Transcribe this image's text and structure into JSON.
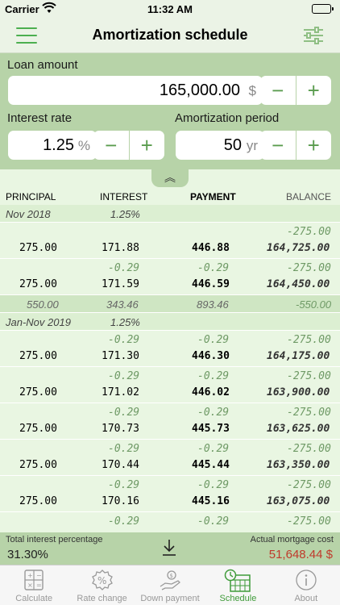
{
  "status": {
    "carrier": "Carrier",
    "time": "11:32 AM"
  },
  "nav": {
    "title": "Amortization schedule"
  },
  "form": {
    "loan_label": "Loan amount",
    "loan_value": "165,000.00",
    "loan_unit": "$",
    "rate_label": "Interest rate",
    "rate_value": "1.25",
    "rate_unit": "%",
    "period_label": "Amortization period",
    "period_value": "50",
    "period_unit": "yr",
    "minus": "−",
    "plus": "+"
  },
  "collapse": "︽",
  "table": {
    "headers": {
      "principal": "PRINCIPAL",
      "interest": "INTEREST",
      "payment": "PAYMENT",
      "balance": "BALANCE"
    },
    "period1": {
      "label": "Nov 2018",
      "rate": "1.25%"
    },
    "rows1": [
      {
        "ci": "",
        "cp": "",
        "cb": "-275.00",
        "p": "275.00",
        "i": "171.88",
        "pay": "446.88",
        "b": "164,725.00"
      },
      {
        "ci": "-0.29",
        "cp": "-0.29",
        "cb": "-275.00",
        "p": "275.00",
        "i": "171.59",
        "pay": "446.59",
        "b": "164,450.00"
      }
    ],
    "subtotal": {
      "p": "550.00",
      "i": "343.46",
      "pay": "893.46",
      "b": "-550.00"
    },
    "period2": {
      "label": "Jan-Nov 2019",
      "rate": "1.25%"
    },
    "rows2": [
      {
        "ci": "-0.29",
        "cp": "-0.29",
        "cb": "-275.00",
        "p": "275.00",
        "i": "171.30",
        "pay": "446.30",
        "b": "164,175.00"
      },
      {
        "ci": "-0.29",
        "cp": "-0.29",
        "cb": "-275.00",
        "p": "275.00",
        "i": "171.02",
        "pay": "446.02",
        "b": "163,900.00"
      },
      {
        "ci": "-0.29",
        "cp": "-0.29",
        "cb": "-275.00",
        "p": "275.00",
        "i": "170.73",
        "pay": "445.73",
        "b": "163,625.00"
      },
      {
        "ci": "-0.29",
        "cp": "-0.29",
        "cb": "-275.00",
        "p": "275.00",
        "i": "170.44",
        "pay": "445.44",
        "b": "163,350.00"
      },
      {
        "ci": "-0.29",
        "cp": "-0.29",
        "cb": "-275.00",
        "p": "275.00",
        "i": "170.16",
        "pay": "445.16",
        "b": "163,075.00"
      },
      {
        "ci": "-0.29",
        "cp": "-0.29",
        "cb": "-275.00",
        "p": "",
        "i": "",
        "pay": "",
        "b": ""
      }
    ]
  },
  "footer": {
    "left_label": "Total interest percentage",
    "left_value": "31.30%",
    "right_label": "Actual mortgage cost",
    "right_value": "51,648.44 $",
    "download_icon": "download-icon"
  },
  "tabs": [
    {
      "label": "Calculate",
      "icon": "calculator-icon"
    },
    {
      "label": "Rate change",
      "icon": "percent-icon"
    },
    {
      "label": "Down payment",
      "icon": "hand-money-icon"
    },
    {
      "label": "Schedule",
      "icon": "schedule-icon",
      "active": true
    },
    {
      "label": "About",
      "icon": "info-icon"
    }
  ],
  "colors": {
    "accent": "#4caf50",
    "panel": "#b7d3a8",
    "table_bg": "#e9f6e2",
    "cost_red": "#c0392b"
  }
}
